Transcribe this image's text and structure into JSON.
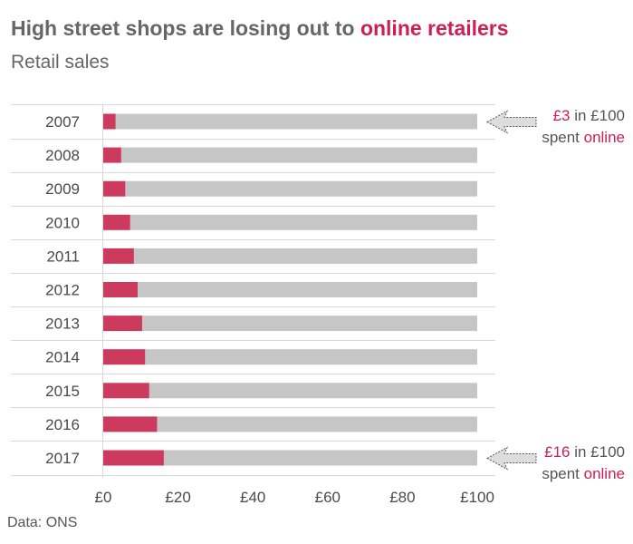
{
  "title": {
    "prefix": "High street shops are losing out to ",
    "highlight": "online retailers"
  },
  "subtitle": "Retail sales",
  "source": "Data: ONS",
  "colors": {
    "online": "#cc3a5d",
    "total": "#c6c6c6",
    "accent": "#cc1f54",
    "grid": "#d8d8d8",
    "arrow_fill": "#dddddd",
    "arrow_stroke": "#555555"
  },
  "chart_data": {
    "type": "bar",
    "orientation": "horizontal",
    "stacked": true,
    "categories": [
      "2007",
      "2008",
      "2009",
      "2010",
      "2011",
      "2012",
      "2013",
      "2014",
      "2015",
      "2016",
      "2017"
    ],
    "series": [
      {
        "values": [
          3.3,
          4.8,
          5.9,
          7.2,
          8.2,
          9.2,
          10.4,
          11.2,
          12.3,
          14.4,
          16.2
        ]
      },
      {
        "values": [
          96.7,
          95.2,
          94.1,
          92.8,
          91.8,
          90.8,
          89.6,
          88.8,
          87.7,
          85.6,
          83.8
        ]
      }
    ],
    "xlim": [
      0,
      100
    ],
    "xticks": [
      {
        "value": 0,
        "label": "£0"
      },
      {
        "value": 20,
        "label": "£20"
      },
      {
        "value": 40,
        "label": "£40"
      },
      {
        "value": 60,
        "label": "£60"
      },
      {
        "value": 80,
        "label": "£80"
      },
      {
        "value": 100,
        "label": "£100"
      }
    ],
    "grid": "horizontal",
    "annotations": [
      {
        "category": "2007",
        "amount": "£3",
        "line1_rest": " in £100",
        "line2_prefix": "spent ",
        "line2_highlight": "online"
      },
      {
        "category": "2017",
        "amount": "£16",
        "line1_rest": " in £100",
        "line2_prefix": "spent ",
        "line2_highlight": "online"
      }
    ]
  }
}
